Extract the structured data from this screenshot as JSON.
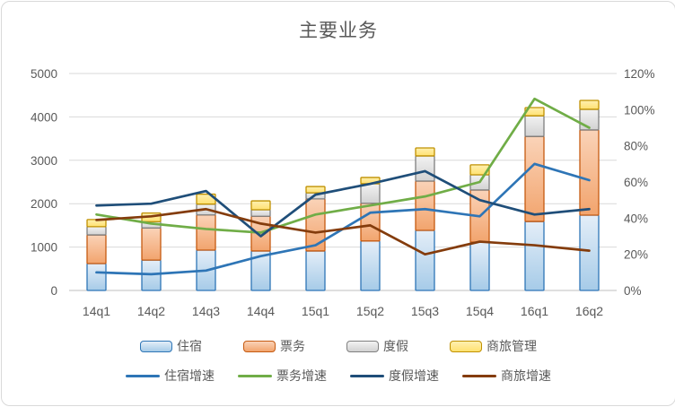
{
  "title": "主要业务",
  "chart_data": {
    "type": "combo: stacked bar (left axis) + line (right axis)",
    "title": "主要业务",
    "categories": [
      "14q1",
      "14q2",
      "14q3",
      "14q4",
      "15q1",
      "15q2",
      "15q3",
      "15q4",
      "16q1",
      "16q2"
    ],
    "left_axis": {
      "min": 0,
      "max": 5000,
      "step": 1000,
      "ticks": [
        "0",
        "1000",
        "2000",
        "3000",
        "4000",
        "5000"
      ]
    },
    "right_axis": {
      "min": 0,
      "max": 120,
      "step": 20,
      "ticks": [
        "0%",
        "20%",
        "40%",
        "60%",
        "80%",
        "100%",
        "120%"
      ]
    },
    "grid": "horizontal gridlines at left-axis ticks",
    "legend_position": "bottom, two rows",
    "bar_series": [
      {
        "name": "住宿",
        "fill_top": "#e4eef8",
        "fill_bottom": "#a6cbe8",
        "border": "#2e75b6",
        "values": [
          620,
          700,
          930,
          910,
          910,
          1140,
          1385,
          1115,
          1590,
          1735
        ]
      },
      {
        "name": "票务",
        "fill_top": "#fad3b8",
        "fill_bottom": "#f2a46d",
        "border": "#c55a11",
        "values": [
          660,
          740,
          810,
          800,
          1200,
          870,
          1135,
          1200,
          1960,
          1965
        ]
      },
      {
        "name": "度假",
        "fill_top": "#f2f2f2",
        "fill_bottom": "#d2d2d2",
        "border": "#7f7f7f",
        "values": [
          190,
          145,
          250,
          150,
          140,
          450,
          580,
          350,
          475,
          475
        ]
      },
      {
        "name": "商旅管理",
        "fill_top": "#fff0b0",
        "fill_bottom": "#ffe170",
        "border": "#bf9000",
        "values": [
          165,
          200,
          230,
          205,
          145,
          145,
          185,
          230,
          190,
          205
        ]
      }
    ],
    "line_series": [
      {
        "name": "住宿增速",
        "color": "#2e75b6",
        "values_pct": [
          10,
          9,
          11,
          19,
          25,
          43,
          45,
          41,
          70,
          61
        ]
      },
      {
        "name": "票务增速",
        "color": "#70ad47",
        "values_pct": [
          42,
          37,
          34,
          32,
          42,
          47,
          52,
          60,
          106,
          90
        ]
      },
      {
        "name": "度假增速",
        "color": "#1f4e79",
        "values_pct": [
          47,
          48,
          55,
          30,
          53,
          59,
          66,
          50,
          42,
          45
        ]
      },
      {
        "name": "商旅增速",
        "color": "#843c0c",
        "values_pct": [
          39,
          41,
          45,
          37,
          32,
          36,
          20,
          27,
          25,
          22
        ]
      }
    ]
  },
  "colors": {
    "title_text": "#595959",
    "axis_text": "#595959",
    "gridline": "#d9d9d9",
    "axis_line": "#bfbfbf",
    "card_border": "#d9d9d9"
  }
}
